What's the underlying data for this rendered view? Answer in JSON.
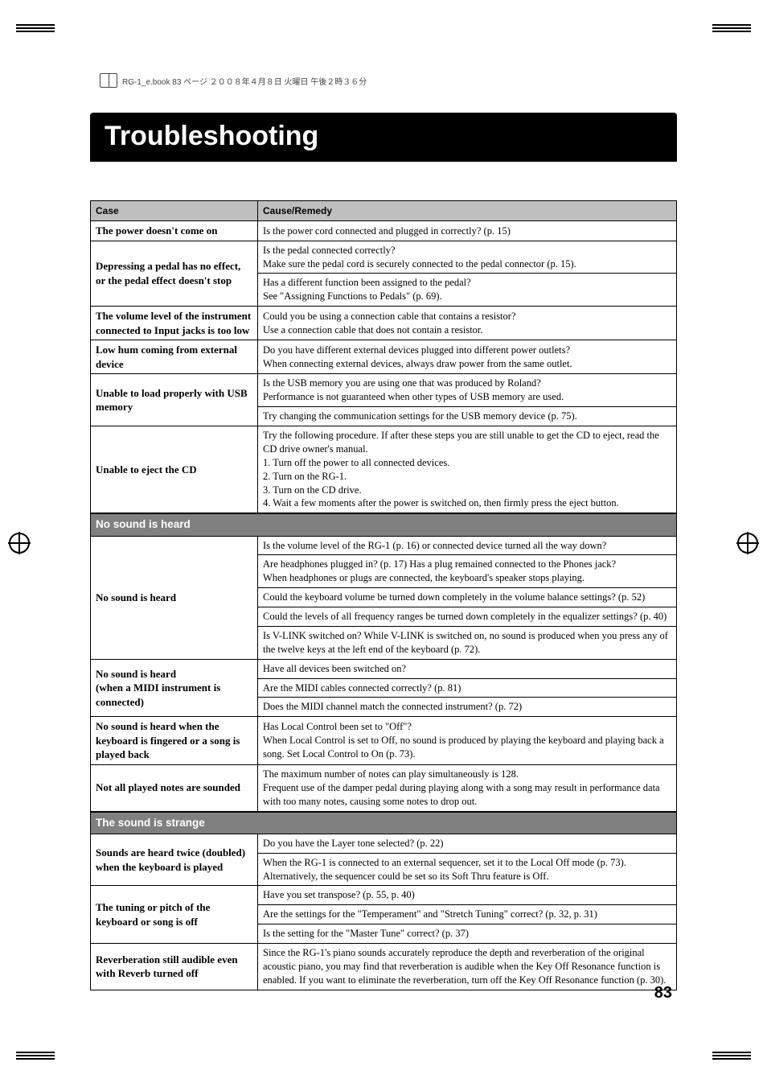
{
  "header_note": "RG-1_e.book 83 ページ ２００８年４月８日 火曜日 午後２時３６分",
  "title": "Troubleshooting",
  "page_number": "83",
  "table": {
    "head": {
      "case": "Case",
      "cause": "Cause/Remedy"
    },
    "groups": [
      {
        "section": null,
        "rows": [
          {
            "case": "The power doesn't come on",
            "causes": [
              "Is the power cord connected and plugged in correctly? (p. 15)"
            ]
          },
          {
            "case": "Depressing a pedal has no effect, or the pedal effect doesn't stop",
            "causes": [
              "Is the pedal connected correctly?\nMake sure the pedal cord is securely connected to the pedal connector (p. 15).",
              "Has a different function been assigned to the pedal?\nSee \"Assigning Functions to Pedals\" (p. 69)."
            ]
          },
          {
            "case": "The volume level of the instrument connected to Input jacks is too low",
            "causes": [
              "Could you be using a connection cable that contains a resistor?\nUse a connection cable that does not contain a resistor."
            ]
          },
          {
            "case": "Low hum coming from external device",
            "causes": [
              "Do you have different external devices plugged into different power outlets?\nWhen connecting external devices, always draw power from the same outlet."
            ]
          },
          {
            "case": "Unable to load properly with USB memory",
            "causes": [
              "Is the USB memory you are using one that was produced by Roland?\nPerformance is not guaranteed when other types of USB memory are used.",
              "Try changing the communication settings for the USB memory device (p. 75)."
            ]
          },
          {
            "case": "Unable to eject the CD",
            "causes": [
              "Try the following procedure. If after these steps you are still unable to get the CD to eject, read the CD drive owner's manual.\n1. Turn off the power to all connected devices.\n2. Turn on the RG-1.\n3. Turn on the CD drive.\n4. Wait a few moments after the power is switched on, then firmly press the eject button."
            ]
          }
        ]
      },
      {
        "section": "No sound is heard",
        "rows": [
          {
            "case": "No sound is heard",
            "causes": [
              "Is the volume level of the RG-1 (p. 16) or connected device turned all the way down?",
              "Are headphones plugged in? (p. 17) Has a plug remained connected to the Phones jack?\nWhen headphones or plugs are connected, the keyboard's speaker stops playing.",
              "Could the keyboard volume be turned down completely in the volume balance settings? (p. 52)",
              "Could the levels of all frequency ranges be turned down completely in the equalizer settings? (p. 40)",
              "Is V-LINK switched on? While V-LINK is switched on, no sound is produced when you press any of the twelve keys at the left end of the keyboard (p. 72)."
            ]
          },
          {
            "case": "No sound is heard\n(when a MIDI instrument is connected)",
            "causes": [
              "Have all devices been switched on?",
              "Are the MIDI cables connected correctly? (p. 81)",
              "Does the MIDI channel match the connected instrument? (p. 72)"
            ]
          },
          {
            "case": "No sound is heard when the keyboard is fingered or a song is played back",
            "causes": [
              "Has Local Control been set to \"Off\"?\nWhen Local Control is set to Off, no sound is produced by playing the keyboard and playing back a song. Set Local Control to On (p. 73)."
            ]
          },
          {
            "case": "Not all played notes are sounded",
            "causes": [
              "The maximum number of notes can play simultaneously is 128.\nFrequent use of the damper pedal during playing along with a song may result in performance data with too many notes, causing some notes to drop out."
            ]
          }
        ]
      },
      {
        "section": "The sound is strange",
        "rows": [
          {
            "case": "Sounds are heard twice (doubled) when the keyboard is played",
            "causes": [
              "Do you have the Layer tone selected? (p. 22)",
              "When the RG-1 is connected to an external sequencer, set it to the Local Off mode (p. 73).\nAlternatively, the sequencer could be set so its Soft Thru feature is Off."
            ]
          },
          {
            "case": "The tuning or pitch of the keyboard or song is off",
            "causes": [
              "Have you set transpose? (p. 55, p. 40)",
              "Are the settings for the \"Temperament\" and \"Stretch Tuning\" correct? (p. 32, p. 31)",
              "Is the setting for the \"Master Tune\" correct? (p. 37)"
            ]
          },
          {
            "case": "Reverberation still audible even with Reverb turned off",
            "causes": [
              "Since the RG-1's piano sounds accurately reproduce the depth and reverberation of the original acoustic piano, you may find that reverberation is audible when the Key Off Resonance function is enabled. If you want to eliminate the reverberation, turn off the Key Off Resonance function (p. 30)."
            ]
          }
        ]
      }
    ]
  }
}
